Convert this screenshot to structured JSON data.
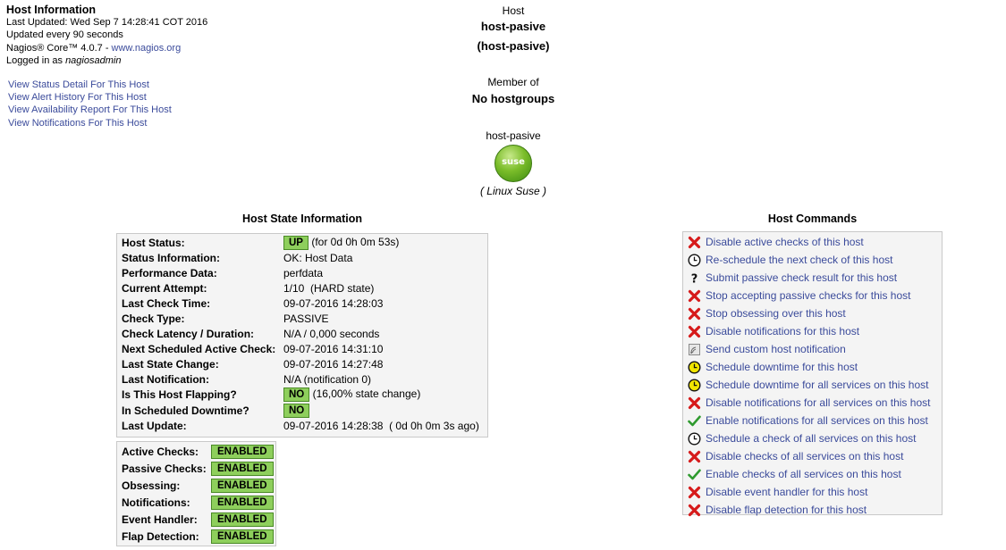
{
  "header": {
    "title": "Host Information",
    "last_updated": "Last Updated: Wed Sep 7 14:28:41 COT 2016",
    "update_interval": "Updated every 90 seconds",
    "version_prefix": "Nagios® Core™ 4.0.7 - ",
    "version_link": "www.nagios.org",
    "logged_in_prefix": "Logged in as ",
    "logged_in_user": "nagiosadmin"
  },
  "nav_links": [
    "View Status Detail For This Host",
    "View Alert History For This Host",
    "View Availability Report For This Host",
    "View Notifications For This Host"
  ],
  "host": {
    "label": "Host",
    "name": "host-pasive",
    "alias": "(host-pasive)",
    "member_label": "Member of",
    "member_value": "No hostgroups",
    "icon_host_name": "host-pasive",
    "icon_text": "suse",
    "os": "( Linux Suse )"
  },
  "state_section": {
    "title": "Host State Information",
    "rows": [
      {
        "key": "Host Status:",
        "badge": "UP",
        "value": " (for 0d 0h 0m 53s)"
      },
      {
        "key": "Status Information:",
        "value": "OK: Host Data"
      },
      {
        "key": "Performance Data:",
        "value": "perfdata"
      },
      {
        "key": "Current Attempt:",
        "value": "1/10  (HARD state)"
      },
      {
        "key": "Last Check Time:",
        "value": "09-07-2016 14:28:03"
      },
      {
        "key": "Check Type:",
        "value": "PASSIVE"
      },
      {
        "key": "Check Latency / Duration:",
        "value": "N/A / 0,000 seconds"
      },
      {
        "key": "Next Scheduled Active Check:",
        "value": "09-07-2016 14:31:10"
      },
      {
        "key": "Last State Change:",
        "value": "09-07-2016 14:27:48"
      },
      {
        "key": "Last Notification:",
        "value": "N/A (notification 0)"
      },
      {
        "key": "Is This Host Flapping?",
        "badge": "NO",
        "value": " (16,00% state change)"
      },
      {
        "key": "In Scheduled Downtime?",
        "badge": "NO",
        "value": ""
      },
      {
        "key": "Last Update:",
        "value": "09-07-2016 14:28:38  ( 0d 0h 0m 3s ago)"
      }
    ]
  },
  "checks": [
    {
      "key": "Active Checks:",
      "value": "ENABLED"
    },
    {
      "key": "Passive Checks:",
      "value": "ENABLED"
    },
    {
      "key": "Obsessing:",
      "value": "ENABLED"
    },
    {
      "key": "Notifications:",
      "value": "ENABLED"
    },
    {
      "key": "Event Handler:",
      "value": "ENABLED"
    },
    {
      "key": "Flap Detection:",
      "value": "ENABLED"
    }
  ],
  "commands_section": {
    "title": "Host Commands",
    "items": [
      {
        "icon": "red-x-icon",
        "label": "Disable active checks of this host"
      },
      {
        "icon": "clock-icon",
        "label": "Re-schedule the next check of this host"
      },
      {
        "icon": "question-icon",
        "label": "Submit passive check result for this host"
      },
      {
        "icon": "red-x-icon",
        "label": "Stop accepting passive checks for this host"
      },
      {
        "icon": "red-x-icon",
        "label": "Stop obsessing over this host"
      },
      {
        "icon": "red-x-icon",
        "label": "Disable notifications for this host"
      },
      {
        "icon": "notify-icon",
        "label": "Send custom host notification"
      },
      {
        "icon": "yellow-clock-icon",
        "label": "Schedule downtime for this host"
      },
      {
        "icon": "yellow-clock-icon",
        "label": "Schedule downtime for all services on this host"
      },
      {
        "icon": "red-x-icon",
        "label": "Disable notifications for all services on this host"
      },
      {
        "icon": "green-check-icon",
        "label": "Enable notifications for all services on this host"
      },
      {
        "icon": "clock-icon",
        "label": "Schedule a check of all services on this host"
      },
      {
        "icon": "red-x-icon",
        "label": "Disable checks of all services on this host"
      },
      {
        "icon": "green-check-icon",
        "label": "Enable checks of all services on this host"
      },
      {
        "icon": "red-x-icon",
        "label": "Disable event handler for this host"
      },
      {
        "icon": "red-x-icon",
        "label": "Disable flap detection for this host"
      }
    ]
  },
  "colors": {
    "link": "#3b4b9b",
    "ok_green": "#8ecf5c",
    "panel_bg": "#f4f4f4",
    "x_red": "#d61a1a",
    "check_green": "#2e9a2e"
  }
}
